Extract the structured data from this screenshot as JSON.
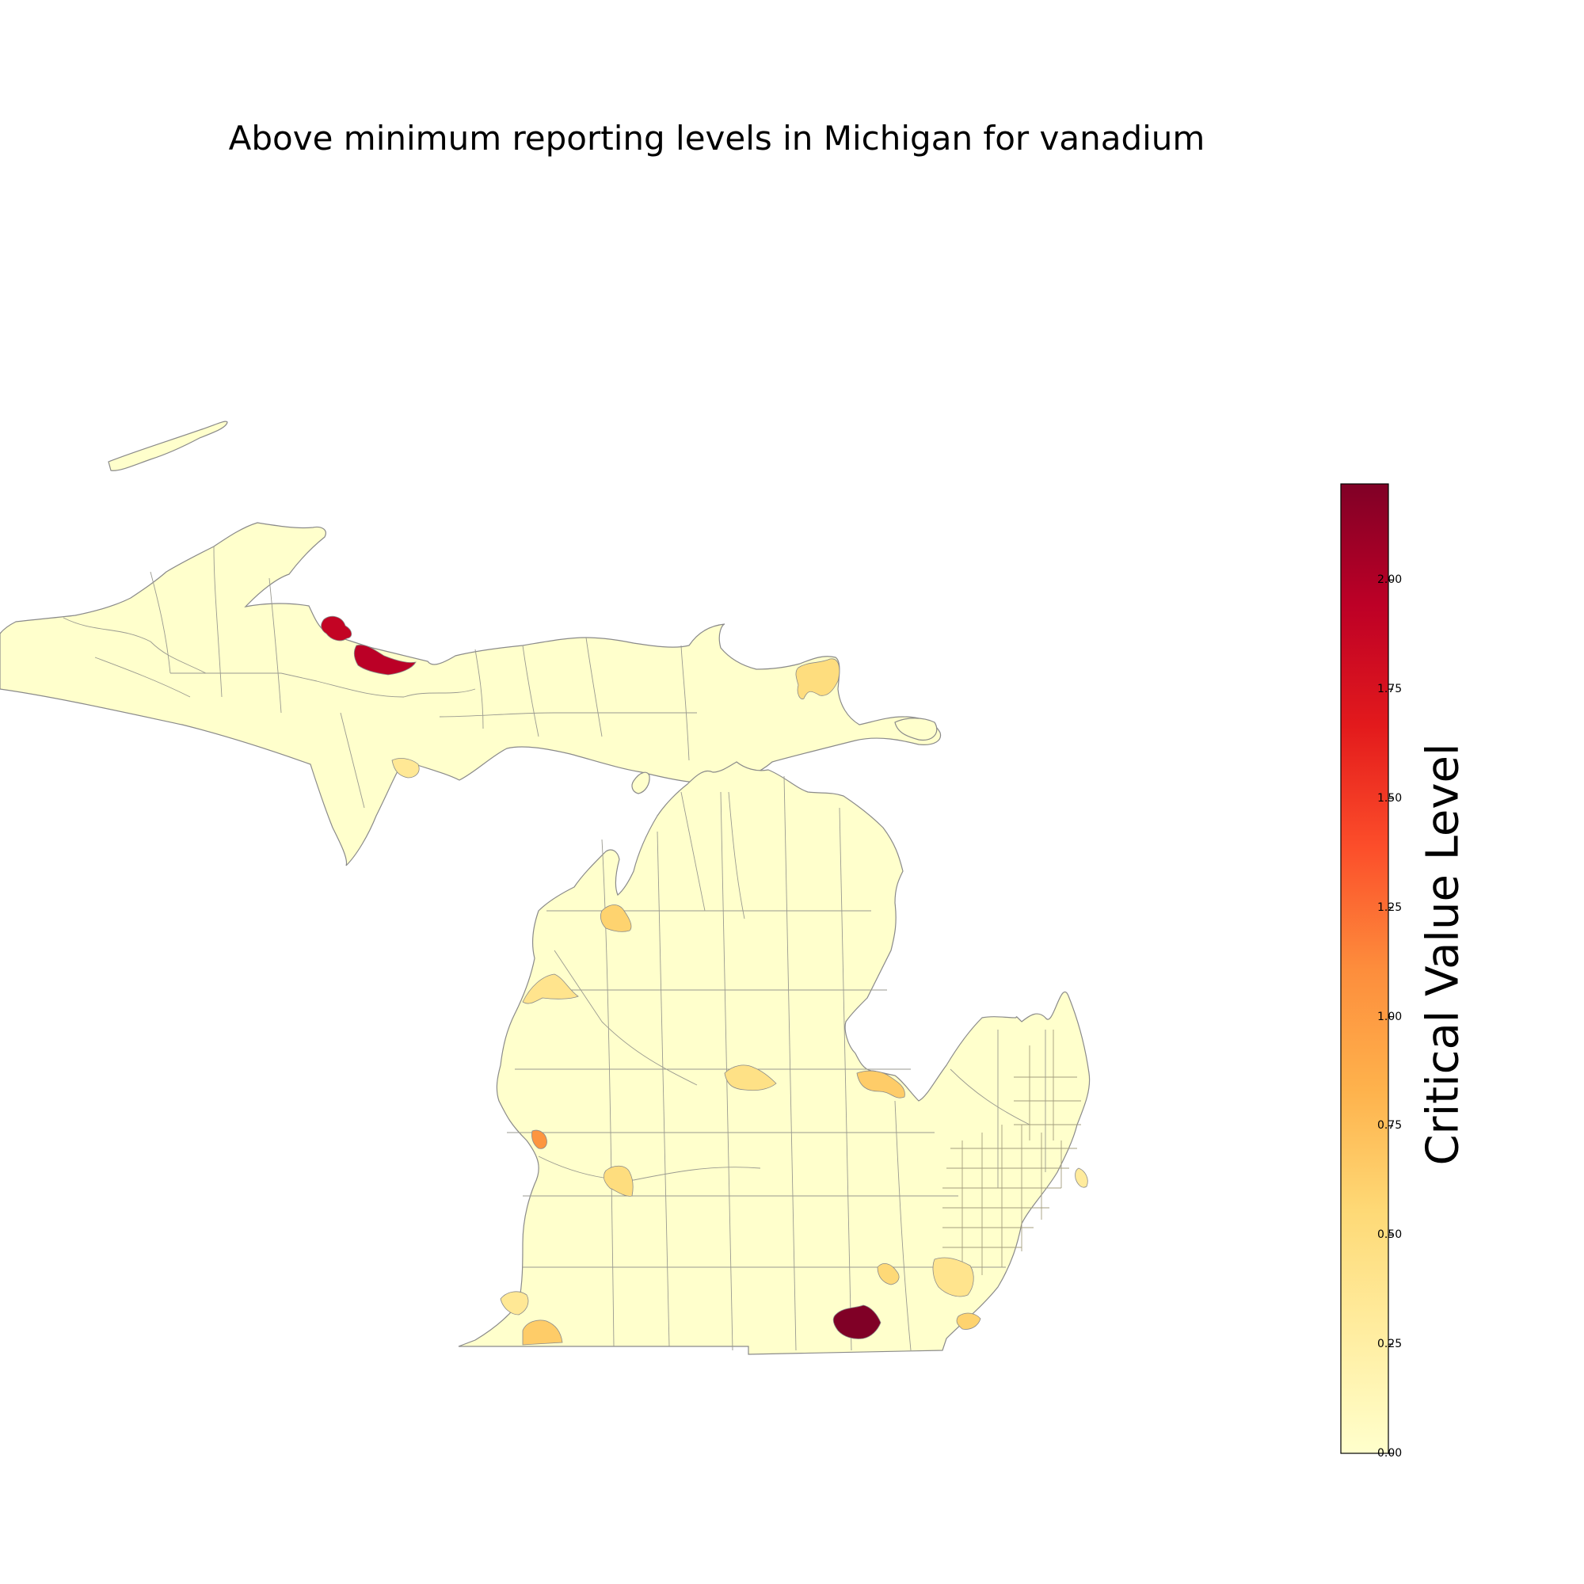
{
  "title": "Above minimum reporting levels in Michigan for vanadium",
  "colorbar": {
    "label": "Critical Value Level",
    "colormap": "YlOrRd",
    "colors": [
      "#ffffcc",
      "#ffeda0",
      "#fed976",
      "#feb24c",
      "#fd8d3c",
      "#fc4e2a",
      "#e31a1c",
      "#bd0026",
      "#800026"
    ],
    "min": 0.0,
    "max": 2.22,
    "ticks": [
      "0.00",
      "0.25",
      "0.50",
      "0.75",
      "1.00",
      "1.25",
      "1.50",
      "1.75",
      "2.00"
    ]
  },
  "chart_data": {
    "type": "choropleth",
    "region": "Michigan",
    "base_value": 0.0,
    "highlighted_areas": [
      {
        "location": "Upper Peninsula north shore (west)",
        "value": 1.9
      },
      {
        "location": "Upper Peninsula north shore (east)",
        "value": 1.95
      },
      {
        "location": "Eastern Upper Peninsula",
        "value": 0.5
      },
      {
        "location": "Upper Peninsula south",
        "value": 0.35
      },
      {
        "location": "Grand Traverse Bay",
        "value": 0.6
      },
      {
        "location": "Northwest lakeshore",
        "value": 0.4
      },
      {
        "location": "Central Lower Peninsula",
        "value": 0.45
      },
      {
        "location": "Saginaw Bay",
        "value": 0.65
      },
      {
        "location": "West lakeshore",
        "value": 1.05
      },
      {
        "location": "West central",
        "value": 0.5
      },
      {
        "location": "Southwest",
        "value": 0.65
      },
      {
        "location": "Southwest lakeshore",
        "value": 0.35
      },
      {
        "location": "South central",
        "value": 2.22
      },
      {
        "location": "South central east",
        "value": 0.55
      },
      {
        "location": "Southeast Michigan",
        "value": 0.4
      },
      {
        "location": "Southeast corner",
        "value": 0.6
      },
      {
        "location": "Thumb east shore",
        "value": 0.3
      }
    ]
  }
}
